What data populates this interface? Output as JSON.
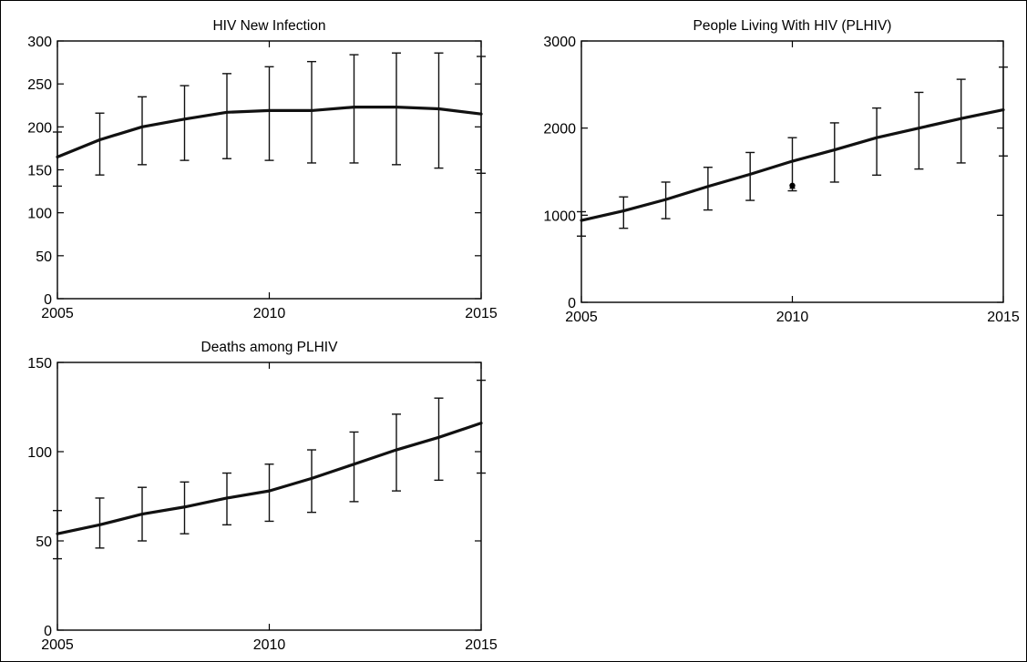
{
  "chart_data": [
    {
      "type": "line",
      "title": "HIV New Infection",
      "xlabel": "",
      "ylabel": "",
      "xlim": [
        2005,
        2015
      ],
      "ylim": [
        0,
        300
      ],
      "x_ticks": [
        2005,
        2010,
        2015
      ],
      "y_ticks": [
        0,
        50,
        100,
        150,
        200,
        250,
        300
      ],
      "grid": false,
      "series": [
        {
          "x": [
            2005,
            2006,
            2007,
            2008,
            2009,
            2010,
            2011,
            2012,
            2013,
            2014,
            2015
          ],
          "values": [
            165,
            185,
            200,
            209,
            217,
            219,
            219,
            223,
            223,
            221,
            215
          ],
          "lower": [
            131,
            144,
            156,
            161,
            163,
            161,
            158,
            158,
            156,
            152,
            146
          ],
          "upper": [
            194,
            216,
            235,
            248,
            262,
            270,
            276,
            284,
            286,
            286,
            282
          ]
        }
      ],
      "points": []
    },
    {
      "type": "line",
      "title": "People Living With HIV (PLHIV)",
      "xlabel": "",
      "ylabel": "",
      "xlim": [
        2005,
        2015
      ],
      "ylim": [
        0,
        3000
      ],
      "x_ticks": [
        2005,
        2010,
        2015
      ],
      "y_ticks": [
        0,
        1000,
        2000,
        3000
      ],
      "grid": false,
      "series": [
        {
          "x": [
            2005,
            2006,
            2007,
            2008,
            2009,
            2010,
            2011,
            2012,
            2013,
            2014,
            2015
          ],
          "values": [
            940,
            1050,
            1180,
            1330,
            1470,
            1620,
            1750,
            1890,
            2000,
            2110,
            2210
          ],
          "lower": [
            760,
            850,
            960,
            1060,
            1170,
            1280,
            1380,
            1460,
            1530,
            1600,
            1680
          ],
          "upper": [
            1040,
            1210,
            1380,
            1550,
            1720,
            1890,
            2060,
            2230,
            2410,
            2560,
            2700
          ]
        }
      ],
      "points": [
        {
          "x": 2010,
          "y": 1340,
          "lower": 1310,
          "upper": 1370
        }
      ]
    },
    {
      "type": "line",
      "title": "Deaths among PLHIV",
      "xlabel": "",
      "ylabel": "",
      "xlim": [
        2005,
        2015
      ],
      "ylim": [
        0,
        150
      ],
      "x_ticks": [
        2005,
        2010,
        2015
      ],
      "y_ticks": [
        0,
        50,
        100,
        150
      ],
      "grid": false,
      "series": [
        {
          "x": [
            2005,
            2006,
            2007,
            2008,
            2009,
            2010,
            2011,
            2012,
            2013,
            2014,
            2015
          ],
          "values": [
            54,
            59,
            65,
            69,
            74,
            78,
            85,
            93,
            101,
            108,
            116
          ],
          "lower": [
            40,
            46,
            50,
            54,
            59,
            61,
            66,
            72,
            78,
            84,
            88
          ],
          "upper": [
            67,
            74,
            80,
            83,
            88,
            93,
            101,
            111,
            121,
            130,
            140
          ]
        }
      ],
      "points": []
    }
  ]
}
